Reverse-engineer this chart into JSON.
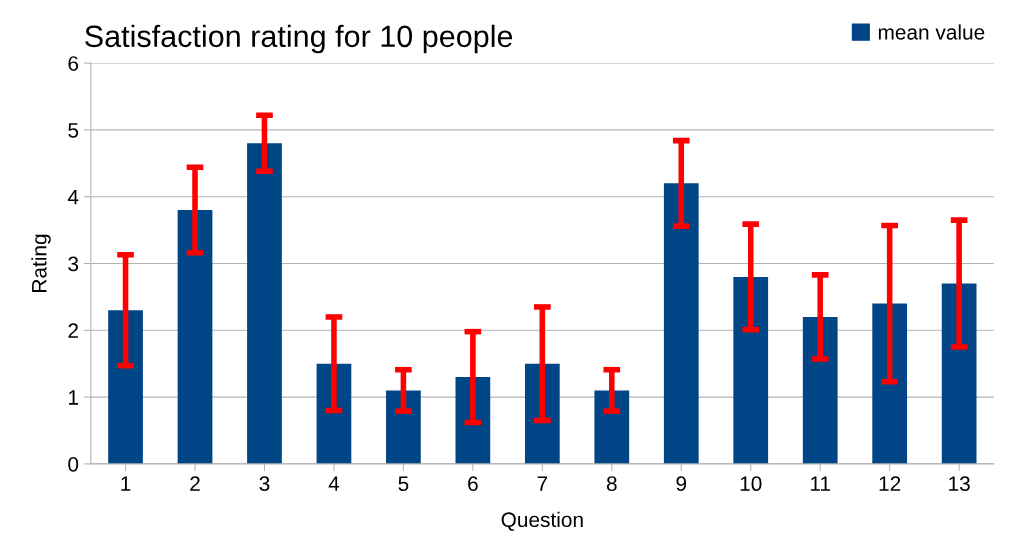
{
  "chart_data": {
    "type": "bar",
    "title": "Satisfaction rating for 10 people",
    "xlabel": "Question",
    "ylabel": "Rating",
    "categories": [
      "1",
      "2",
      "3",
      "4",
      "5",
      "6",
      "7",
      "8",
      "9",
      "10",
      "11",
      "12",
      "13"
    ],
    "series": [
      {
        "name": "mean value",
        "color": "#004586",
        "values": [
          2.3,
          3.8,
          4.8,
          1.5,
          1.1,
          1.3,
          1.5,
          1.1,
          4.2,
          2.8,
          2.2,
          2.4,
          2.7
        ],
        "errors": [
          0.83,
          0.64,
          0.42,
          0.7,
          0.31,
          0.68,
          0.85,
          0.31,
          0.64,
          0.79,
          0.63,
          1.17,
          0.95
        ]
      }
    ],
    "ylim": [
      0,
      6
    ],
    "yticks": [
      0,
      1,
      2,
      3,
      4,
      5,
      6
    ],
    "grid": "y",
    "legend": "top right"
  }
}
